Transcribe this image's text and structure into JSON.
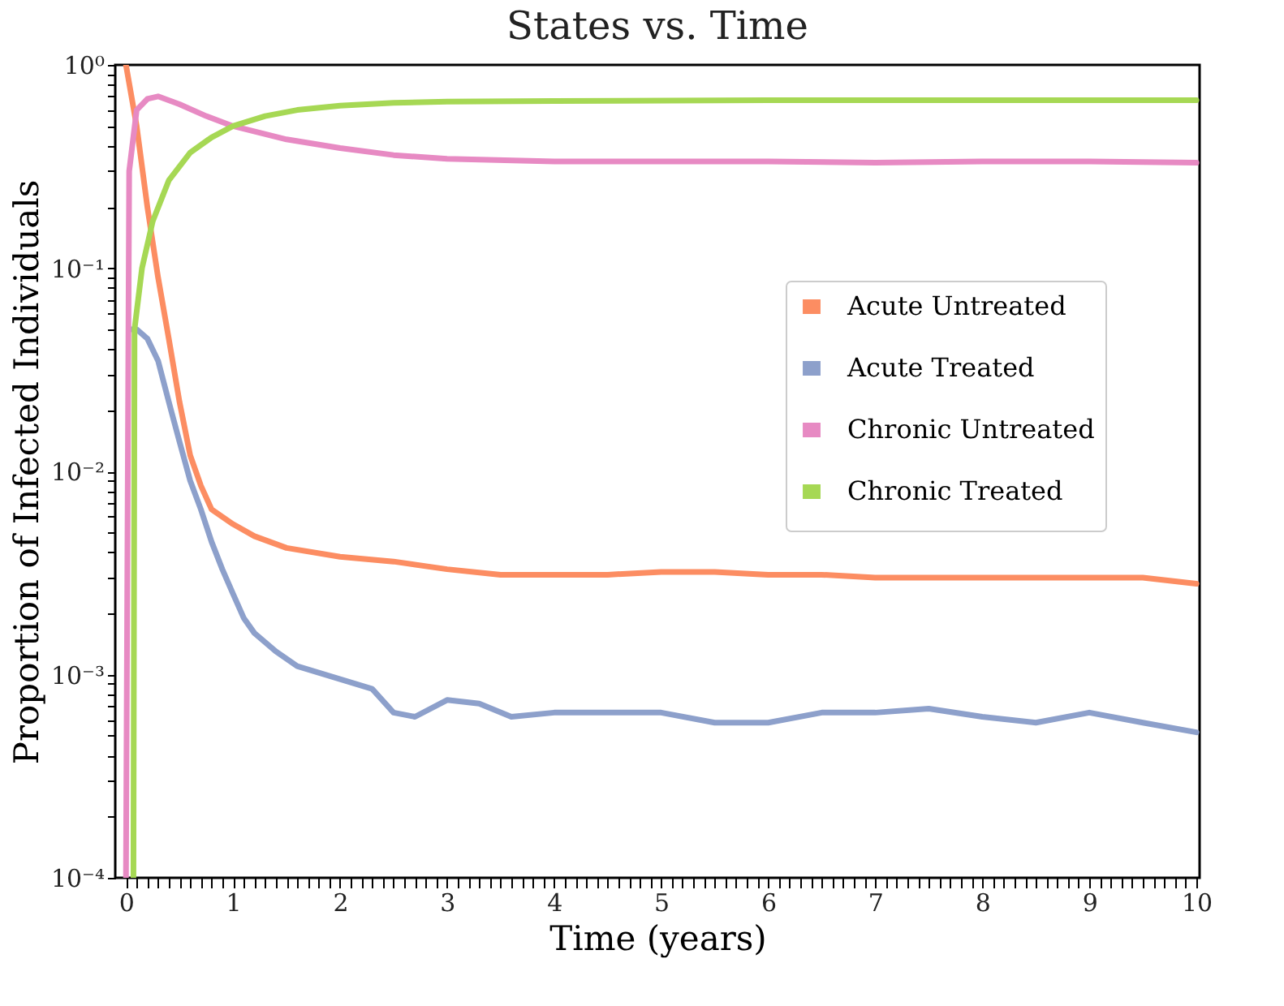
{
  "chart_data": {
    "type": "line",
    "title": "States vs. Time",
    "xlabel": "Time (years)",
    "ylabel": "Proportion of Infected Individuals",
    "log": "y",
    "grid": false,
    "legend": "right",
    "marker": "none",
    "line_style": "solid",
    "xlim": [
      -0.1,
      10.03
    ],
    "ylim": [
      0.0001,
      1
    ],
    "xticks": [
      0,
      {
        "value": 0.1,
        "label": null
      },
      {
        "value": 0.2,
        "label": null
      },
      {
        "value": 0.3,
        "label": null
      },
      {
        "value": 0.4,
        "label": null
      },
      {
        "value": 0.5,
        "label": null
      },
      {
        "value": 0.6,
        "label": null
      },
      {
        "value": 0.7,
        "label": null
      },
      {
        "value": 0.8,
        "label": null
      },
      {
        "value": 0.9,
        "label": null
      },
      1,
      {
        "value": 1.1,
        "label": null
      },
      {
        "value": 1.2,
        "label": null
      },
      {
        "value": 1.3,
        "label": null
      },
      {
        "value": 1.4,
        "label": null
      },
      {
        "value": 1.5,
        "label": null
      },
      {
        "value": 1.6,
        "label": null
      },
      {
        "value": 1.7,
        "label": null
      },
      {
        "value": 1.8,
        "label": null
      },
      {
        "value": 1.9,
        "label": null
      },
      2,
      {
        "value": 2.1,
        "label": null
      },
      {
        "value": 2.2,
        "label": null
      },
      {
        "value": 2.3,
        "label": null
      },
      {
        "value": 2.4,
        "label": null
      },
      {
        "value": 2.5,
        "label": null
      },
      {
        "value": 2.6,
        "label": null
      },
      {
        "value": 2.7,
        "label": null
      },
      {
        "value": 2.8,
        "label": null
      },
      {
        "value": 2.9,
        "label": null
      },
      3,
      {
        "value": 3.1,
        "label": null
      },
      {
        "value": 3.2,
        "label": null
      },
      {
        "value": 3.3,
        "label": null
      },
      {
        "value": 3.4,
        "label": null
      },
      {
        "value": 3.5,
        "label": null
      },
      {
        "value": 3.6,
        "label": null
      },
      {
        "value": 3.7,
        "label": null
      },
      {
        "value": 3.8,
        "label": null
      },
      {
        "value": 3.9,
        "label": null
      },
      4,
      {
        "value": 4.1,
        "label": null
      },
      {
        "value": 4.2,
        "label": null
      },
      {
        "value": 4.3,
        "label": null
      },
      {
        "value": 4.4,
        "label": null
      },
      {
        "value": 4.5,
        "label": null
      },
      {
        "value": 4.6,
        "label": null
      },
      {
        "value": 4.7,
        "label": null
      },
      {
        "value": 4.8,
        "label": null
      },
      {
        "value": 4.9,
        "label": null
      },
      5,
      {
        "value": 5.1,
        "label": null
      },
      {
        "value": 5.2,
        "label": null
      },
      {
        "value": 5.3,
        "label": null
      },
      {
        "value": 5.4,
        "label": null
      },
      {
        "value": 5.5,
        "label": null
      },
      {
        "value": 5.6,
        "label": null
      },
      {
        "value": 5.7,
        "label": null
      },
      {
        "value": 5.8,
        "label": null
      },
      {
        "value": 5.9,
        "label": null
      },
      6,
      {
        "value": 6.1,
        "label": null
      },
      {
        "value": 6.2,
        "label": null
      },
      {
        "value": 6.3,
        "label": null
      },
      {
        "value": 6.4,
        "label": null
      },
      {
        "value": 6.5,
        "label": null
      },
      {
        "value": 6.6,
        "label": null
      },
      {
        "value": 6.7,
        "label": null
      },
      {
        "value": 6.8,
        "label": null
      },
      {
        "value": 6.9,
        "label": null
      },
      7,
      {
        "value": 7.1,
        "label": null
      },
      {
        "value": 7.2,
        "label": null
      },
      {
        "value": 7.3,
        "label": null
      },
      {
        "value": 7.4,
        "label": null
      },
      {
        "value": 7.5,
        "label": null
      },
      {
        "value": 7.6,
        "label": null
      },
      {
        "value": 7.7,
        "label": null
      },
      {
        "value": 7.8,
        "label": null
      },
      {
        "value": 7.9,
        "label": null
      },
      8,
      {
        "value": 8.1,
        "label": null
      },
      {
        "value": 8.2,
        "label": null
      },
      {
        "value": 8.3,
        "label": null
      },
      {
        "value": 8.4,
        "label": null
      },
      {
        "value": 8.5,
        "label": null
      },
      {
        "value": 8.6,
        "label": null
      },
      {
        "value": 8.7,
        "label": null
      },
      {
        "value": 8.8,
        "label": null
      },
      {
        "value": 8.9,
        "label": null
      },
      9,
      {
        "value": 9.1,
        "label": null
      },
      {
        "value": 9.2,
        "label": null
      },
      {
        "value": 9.3,
        "label": null
      },
      {
        "value": 9.4,
        "label": null
      },
      {
        "value": 9.5,
        "label": null
      },
      {
        "value": 9.6,
        "label": null
      },
      {
        "value": 9.7,
        "label": null
      },
      {
        "value": 9.8,
        "label": null
      },
      {
        "value": 9.9,
        "label": null
      },
      10
    ],
    "yticks": [
      {
        "value": 0.0001,
        "label": "10⁻⁴"
      },
      {
        "value": 0.0002,
        "label": null
      },
      {
        "value": 0.0003,
        "label": null
      },
      {
        "value": 0.0004,
        "label": null
      },
      {
        "value": 0.0005,
        "label": null
      },
      {
        "value": 0.0006,
        "label": null
      },
      {
        "value": 0.0007,
        "label": null
      },
      {
        "value": 0.0008,
        "label": null
      },
      {
        "value": 0.0009,
        "label": null
      },
      {
        "value": 0.001,
        "label": "10⁻³"
      },
      {
        "value": 0.002,
        "label": null
      },
      {
        "value": 0.003,
        "label": null
      },
      {
        "value": 0.004,
        "label": null
      },
      {
        "value": 0.005,
        "label": null
      },
      {
        "value": 0.006,
        "label": null
      },
      {
        "value": 0.007,
        "label": null
      },
      {
        "value": 0.008,
        "label": null
      },
      {
        "value": 0.009,
        "label": null
      },
      {
        "value": 0.01,
        "label": "10⁻²"
      },
      {
        "value": 0.02,
        "label": null
      },
      {
        "value": 0.03,
        "label": null
      },
      {
        "value": 0.04,
        "label": null
      },
      {
        "value": 0.05,
        "label": null
      },
      {
        "value": 0.06,
        "label": null
      },
      {
        "value": 0.07,
        "label": null
      },
      {
        "value": 0.08,
        "label": null
      },
      {
        "value": 0.09,
        "label": null
      },
      {
        "value": 0.1,
        "label": "10⁻¹"
      },
      {
        "value": 0.2,
        "label": null
      },
      {
        "value": 0.3,
        "label": null
      },
      {
        "value": 0.4,
        "label": null
      },
      {
        "value": 0.5,
        "label": null
      },
      {
        "value": 0.6,
        "label": null
      },
      {
        "value": 0.7,
        "label": null
      },
      {
        "value": 0.8,
        "label": null
      },
      {
        "value": 0.9,
        "label": null
      },
      {
        "value": 1,
        "label": "10⁰"
      }
    ],
    "series": [
      {
        "name": "Acute Untreated",
        "color": "#fc8d62",
        "x": [
          0,
          0.1,
          0.2,
          0.3,
          0.4,
          0.5,
          0.6,
          0.7,
          0.8,
          1.0,
          1.2,
          1.5,
          2,
          2.5,
          3,
          3.5,
          4,
          4.5,
          5,
          5.5,
          6,
          6.5,
          7,
          7.5,
          8,
          8.5,
          9,
          9.5,
          10
        ],
        "values": [
          1.0,
          0.5,
          0.2,
          0.09,
          0.045,
          0.022,
          0.012,
          0.0085,
          0.0065,
          0.0055,
          0.0048,
          0.0042,
          0.0038,
          0.0036,
          0.0033,
          0.0031,
          0.0031,
          0.0031,
          0.0032,
          0.0032,
          0.0031,
          0.0031,
          0.003,
          0.003,
          0.003,
          0.003,
          0.003,
          0.003,
          0.0028
        ]
      },
      {
        "name": "Acute Treated",
        "color": "#8da0cb",
        "x": [
          0.05,
          0.1,
          0.2,
          0.3,
          0.4,
          0.5,
          0.6,
          0.7,
          0.8,
          0.9,
          1.0,
          1.1,
          1.2,
          1.4,
          1.6,
          2,
          2.3,
          2.5,
          2.7,
          3,
          3.3,
          3.6,
          4,
          4.5,
          5,
          5.5,
          6,
          6.5,
          7,
          7.5,
          8,
          8.5,
          9,
          9.5,
          10
        ],
        "values": [
          0.05,
          0.05,
          0.045,
          0.035,
          0.022,
          0.014,
          0.009,
          0.0065,
          0.0045,
          0.0033,
          0.0025,
          0.0019,
          0.0016,
          0.0013,
          0.0011,
          0.00095,
          0.00085,
          0.00065,
          0.00062,
          0.00075,
          0.00072,
          0.00062,
          0.00065,
          0.00065,
          0.00065,
          0.00058,
          0.00058,
          0.00065,
          0.00065,
          0.00068,
          0.00062,
          0.00058,
          0.00065,
          0.00058,
          0.00052
        ]
      },
      {
        "name": "Chronic Untreated",
        "color": "#e78ac3",
        "x": [
          0,
          0.03,
          0.1,
          0.2,
          0.3,
          0.5,
          0.75,
          1,
          1.5,
          2,
          2.5,
          3,
          4,
          5,
          6,
          7,
          8,
          9,
          10
        ],
        "values": [
          0.0001,
          0.3,
          0.6,
          0.68,
          0.7,
          0.64,
          0.56,
          0.5,
          0.43,
          0.39,
          0.36,
          0.345,
          0.335,
          0.335,
          0.335,
          0.33,
          0.335,
          0.335,
          0.33
        ]
      },
      {
        "name": "Chronic Treated",
        "color": "#a6d854",
        "x": [
          0.07,
          0.08,
          0.15,
          0.25,
          0.4,
          0.6,
          0.8,
          1.0,
          1.3,
          1.6,
          2,
          2.5,
          3,
          4,
          6,
          8,
          10
        ],
        "values": [
          0.0001,
          0.05,
          0.1,
          0.17,
          0.27,
          0.37,
          0.44,
          0.5,
          0.56,
          0.6,
          0.63,
          0.65,
          0.66,
          0.665,
          0.67,
          0.67,
          0.67
        ]
      }
    ]
  }
}
